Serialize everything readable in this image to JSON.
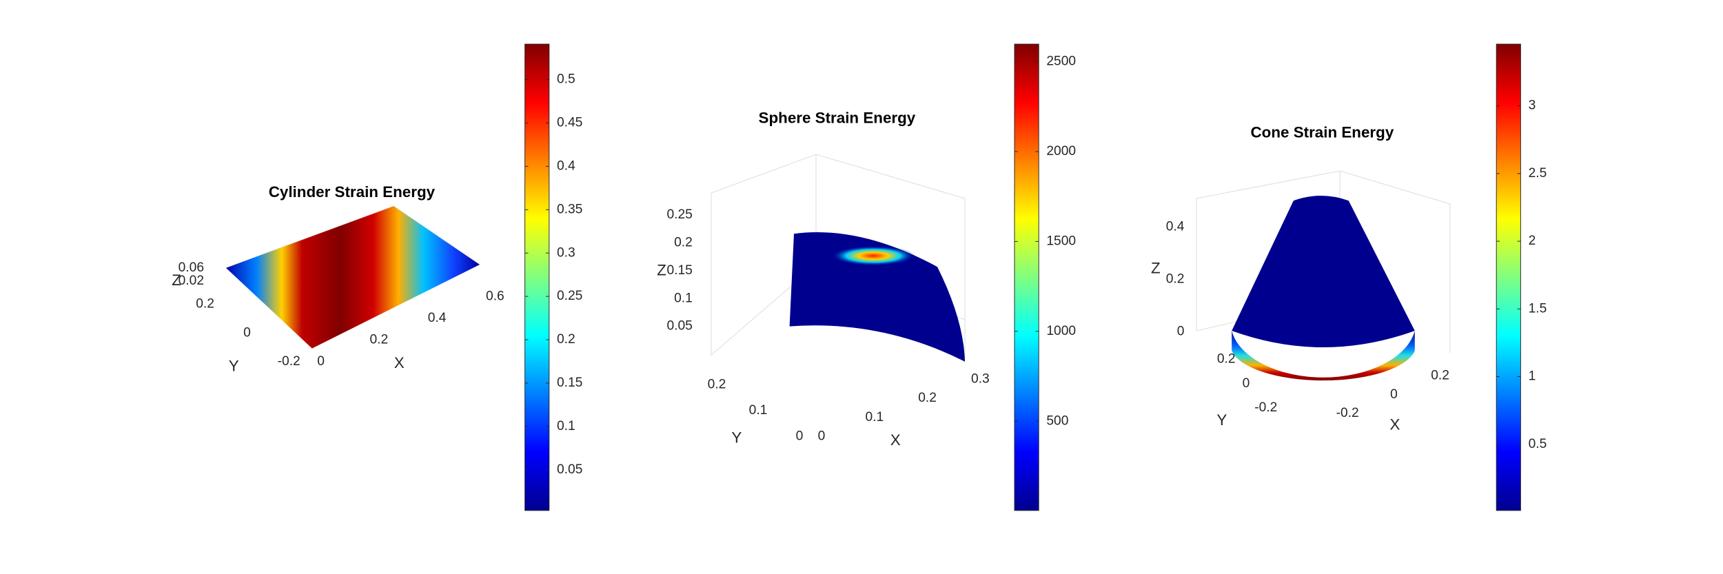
{
  "chart_data": [
    {
      "type": "surface",
      "title": "Cylinder Strain Energy",
      "xlabel": "X",
      "ylabel": "Y",
      "zlabel": "Z",
      "colormap": "jet",
      "xlim": [
        0,
        0.6
      ],
      "xticks": [
        0,
        0.2,
        0.4,
        0.6
      ],
      "ylim": [
        -0.2,
        0.2
      ],
      "yticks": [
        -0.2,
        0,
        0.2
      ],
      "zlim": [
        0,
        0.06
      ],
      "zticks": [
        0.02,
        0.06
      ],
      "clim": [
        0.003,
        0.541
      ],
      "cticks": [
        0.05,
        0.1,
        0.15,
        0.2,
        0.25,
        0.3,
        0.35,
        0.4,
        0.45,
        0.5
      ]
    },
    {
      "type": "surface",
      "title": "Sphere Strain Energy",
      "xlabel": "X",
      "ylabel": "Y",
      "zlabel": "Z",
      "colormap": "jet",
      "xlim": [
        0,
        0.3
      ],
      "xticks": [
        0,
        0.1,
        0.2,
        0.3
      ],
      "ylim": [
        0,
        0.2
      ],
      "yticks": [
        0,
        0.1,
        0.2
      ],
      "zlim": [
        0.05,
        0.25
      ],
      "zticks": [
        0.05,
        0.1,
        0.15,
        0.2,
        0.25
      ],
      "clim": [
        3,
        2598
      ],
      "cticks": [
        500,
        1000,
        1500,
        2000,
        2500
      ]
    },
    {
      "type": "surface",
      "title": "Cone Strain Energy",
      "xlabel": "X",
      "ylabel": "Y",
      "zlabel": "Z",
      "colormap": "jet",
      "xlim": [
        -0.2,
        0.2
      ],
      "xticks": [
        -0.2,
        0,
        0.2
      ],
      "ylim": [
        -0.2,
        0.2
      ],
      "yticks": [
        -0.2,
        0,
        0.2
      ],
      "zlim": [
        0,
        0.4
      ],
      "zticks": [
        0,
        0.2,
        0.4
      ],
      "clim": [
        0.011,
        3.456
      ],
      "cticks": [
        0.5,
        1,
        1.5,
        2,
        2.5,
        3
      ]
    }
  ]
}
